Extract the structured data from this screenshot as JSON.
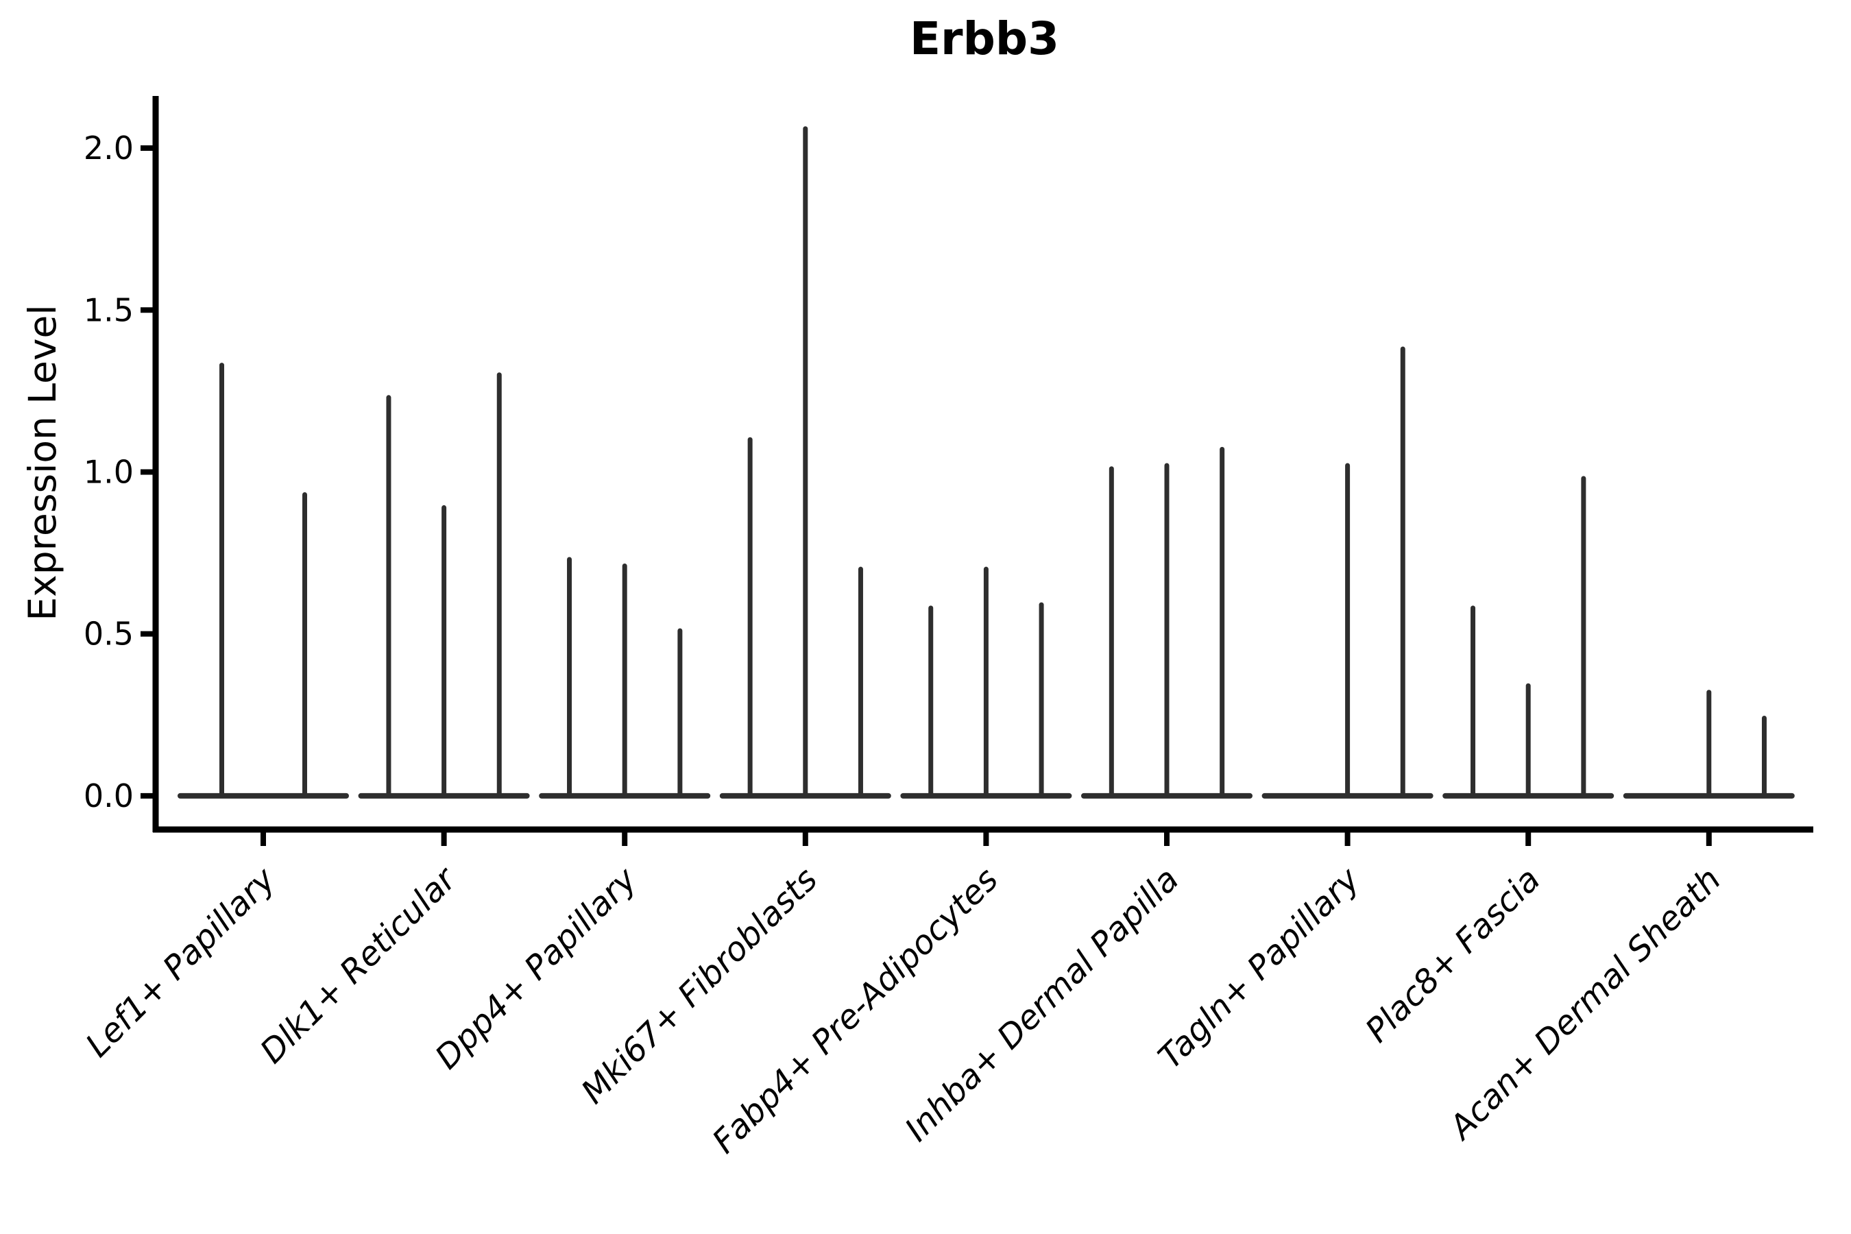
{
  "chart_data": {
    "type": "violin",
    "title": "Erbb3",
    "ylabel": "Expression Level",
    "xlabel": "",
    "legend": null,
    "grid": false,
    "ylim": [
      -0.104,
      2.161
    ],
    "ytick_values": [
      0.0,
      0.5,
      1.0,
      1.5,
      2.0
    ],
    "ytick_labels": [
      "0.0",
      "0.5",
      "1.0",
      "1.5",
      "2.0"
    ],
    "style_note": "Collapsed violins: almost all density at 0 (flat baseline per group) with a thin vertical spike up to the max expression of each violin; 0-valued violins render as baseline only.",
    "categories": [
      {
        "label": "Lef1+ Papillary",
        "violin_max_values": [
          1.33,
          0.93
        ]
      },
      {
        "label": "Dlk1+ Reticular",
        "violin_max_values": [
          1.23,
          0.89,
          1.3
        ]
      },
      {
        "label": "Dpp4+ Papillary",
        "violin_max_values": [
          0.73,
          0.71,
          0.51
        ]
      },
      {
        "label": "Mki67+ Fibroblasts",
        "violin_max_values": [
          1.1,
          2.06,
          0.7
        ]
      },
      {
        "label": "Fabp4+ Pre-Adipocytes",
        "violin_max_values": [
          0.58,
          0.7,
          0.59
        ]
      },
      {
        "label": "Inhba+ Dermal Papilla",
        "violin_max_values": [
          1.01,
          1.02,
          1.07
        ]
      },
      {
        "label": "Tagln+ Papillary",
        "violin_max_values": [
          0.0,
          1.02,
          1.38
        ]
      },
      {
        "label": "Plac8+ Fascia",
        "violin_max_values": [
          0.58,
          0.34,
          0.98
        ]
      },
      {
        "label": "Acan+ Dermal Sheath",
        "violin_max_values": [
          0.0,
          0.32,
          0.24
        ]
      }
    ],
    "colors": {
      "spike": "#2e2e2e",
      "axis": "#000000",
      "text": "#000000",
      "background": "#ffffff"
    }
  }
}
